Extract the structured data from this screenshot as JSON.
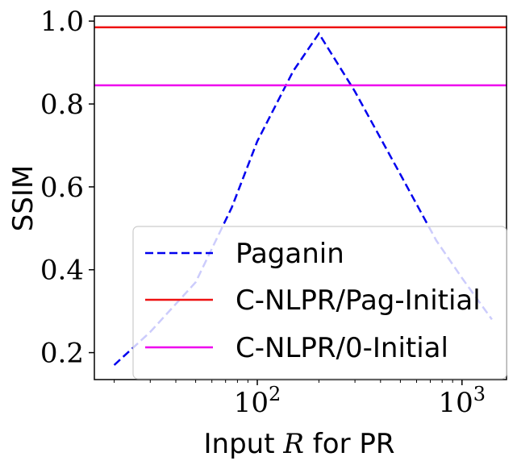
{
  "chart_data": {
    "type": "line",
    "xlabel_prefix": "Input ",
    "xlabel_var": "R",
    "xlabel_suffix": " for PR",
    "ylabel": "SSIM",
    "xscale": "log",
    "xlim": [
      16,
      1650
    ],
    "ylim": [
      0.135,
      1.012
    ],
    "yticks": [
      0.2,
      0.4,
      0.6,
      0.8,
      1.0
    ],
    "ytick_labels": [
      "0.2",
      "0.4",
      "0.6",
      "0.8",
      "1.0"
    ],
    "xticks": [
      {
        "value": 100,
        "base": "10",
        "exp": "2"
      },
      {
        "value": 1000,
        "base": "10",
        "exp": "3"
      }
    ],
    "grid": false,
    "legend_position": "lower-right",
    "series": [
      {
        "name": "Paganin",
        "style": "dashed",
        "color": "#0000ee",
        "x": [
          20,
          30,
          50,
          75,
          100,
          150,
          200,
          300,
          500,
          750,
          1000,
          1400
        ],
        "y": [
          0.17,
          0.25,
          0.37,
          0.55,
          0.71,
          0.88,
          0.97,
          0.83,
          0.63,
          0.47,
          0.38,
          0.28
        ]
      },
      {
        "name": "C-NLPR/Pag-Initial",
        "style": "solid",
        "color": "#ee1111",
        "hline": 0.985
      },
      {
        "name": "C-NLPR/0-Initial",
        "style": "solid",
        "color": "#ee00ee",
        "hline": 0.845
      }
    ]
  }
}
